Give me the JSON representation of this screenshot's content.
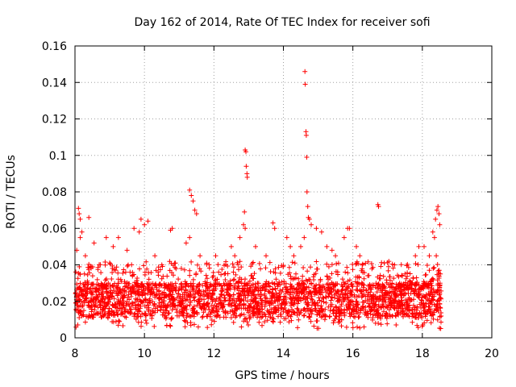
{
  "chart_data": {
    "type": "scatter",
    "title": "Day 162 of 2014, Rate Of TEC Index for receiver sofi",
    "xlabel": "GPS time / hours",
    "ylabel": "ROTI / TECUs",
    "xlim": [
      8,
      20
    ],
    "ylim": [
      0,
      0.16
    ],
    "grid": true,
    "marker": "+",
    "color": "#ff0000",
    "x_ticks": [
      8,
      10,
      12,
      14,
      16,
      18,
      20
    ],
    "x_tick_labels": [
      "8",
      "10",
      "12",
      "14",
      "16",
      "18",
      "20"
    ],
    "y_ticks": [
      0,
      0.02,
      0.04,
      0.06,
      0.08,
      0.1,
      0.12,
      0.14,
      0.16
    ],
    "y_tick_labels": [
      "0",
      "0.02",
      "0.04",
      "0.06",
      "0.08",
      "0.1",
      "0.12",
      "0.14",
      "0.16"
    ],
    "series": [
      {
        "name": "ROTI",
        "baseline_range": [
          8.0,
          18.55
        ],
        "baseline_band": [
          0.005,
          0.03
        ],
        "points": [
          [
            8.1,
            0.071
          ],
          [
            8.12,
            0.068
          ],
          [
            8.15,
            0.065
          ],
          [
            8.4,
            0.066
          ],
          [
            8.2,
            0.058
          ],
          [
            8.15,
            0.055
          ],
          [
            8.05,
            0.048
          ],
          [
            8.3,
            0.045
          ],
          [
            8.55,
            0.052
          ],
          [
            8.9,
            0.055
          ],
          [
            9.1,
            0.05
          ],
          [
            9.25,
            0.055
          ],
          [
            9.5,
            0.048
          ],
          [
            9.7,
            0.06
          ],
          [
            9.85,
            0.058
          ],
          [
            9.9,
            0.065
          ],
          [
            10.0,
            0.062
          ],
          [
            10.1,
            0.064
          ],
          [
            10.3,
            0.045
          ],
          [
            10.5,
            0.04
          ],
          [
            10.75,
            0.059
          ],
          [
            10.8,
            0.06
          ],
          [
            11.3,
            0.081
          ],
          [
            11.35,
            0.078
          ],
          [
            11.4,
            0.075
          ],
          [
            11.45,
            0.07
          ],
          [
            11.5,
            0.068
          ],
          [
            11.3,
            0.055
          ],
          [
            11.2,
            0.052
          ],
          [
            11.6,
            0.045
          ],
          [
            12.05,
            0.045
          ],
          [
            12.3,
            0.035
          ],
          [
            12.5,
            0.05
          ],
          [
            12.6,
            0.045
          ],
          [
            12.75,
            0.055
          ],
          [
            12.85,
            0.062
          ],
          [
            12.88,
            0.069
          ],
          [
            12.9,
            0.103
          ],
          [
            12.92,
            0.102
          ],
          [
            12.93,
            0.094
          ],
          [
            12.95,
            0.09
          ],
          [
            12.96,
            0.088
          ],
          [
            12.9,
            0.06
          ],
          [
            13.2,
            0.05
          ],
          [
            13.5,
            0.045
          ],
          [
            13.7,
            0.063
          ],
          [
            13.75,
            0.06
          ],
          [
            14.1,
            0.055
          ],
          [
            14.2,
            0.05
          ],
          [
            14.3,
            0.045
          ],
          [
            14.5,
            0.05
          ],
          [
            14.62,
            0.146
          ],
          [
            14.63,
            0.139
          ],
          [
            14.65,
            0.113
          ],
          [
            14.66,
            0.111
          ],
          [
            14.67,
            0.099
          ],
          [
            14.68,
            0.08
          ],
          [
            14.7,
            0.072
          ],
          [
            14.72,
            0.066
          ],
          [
            14.75,
            0.065
          ],
          [
            14.8,
            0.062
          ],
          [
            14.6,
            0.055
          ],
          [
            14.95,
            0.06
          ],
          [
            15.1,
            0.058
          ],
          [
            15.25,
            0.05
          ],
          [
            15.4,
            0.048
          ],
          [
            15.5,
            0.045
          ],
          [
            15.75,
            0.055
          ],
          [
            15.85,
            0.06
          ],
          [
            15.9,
            0.06
          ],
          [
            16.1,
            0.05
          ],
          [
            16.2,
            0.045
          ],
          [
            16.72,
            0.073
          ],
          [
            16.74,
            0.072
          ],
          [
            17.2,
            0.04
          ],
          [
            17.5,
            0.035
          ],
          [
            17.8,
            0.045
          ],
          [
            17.9,
            0.05
          ],
          [
            18.05,
            0.05
          ],
          [
            18.2,
            0.045
          ],
          [
            18.3,
            0.058
          ],
          [
            18.35,
            0.055
          ],
          [
            18.38,
            0.065
          ],
          [
            18.42,
            0.07
          ],
          [
            18.45,
            0.072
          ],
          [
            18.48,
            0.068
          ],
          [
            18.5,
            0.062
          ],
          [
            18.4,
            0.045
          ],
          [
            18.52,
            0.035
          ]
        ]
      }
    ]
  }
}
